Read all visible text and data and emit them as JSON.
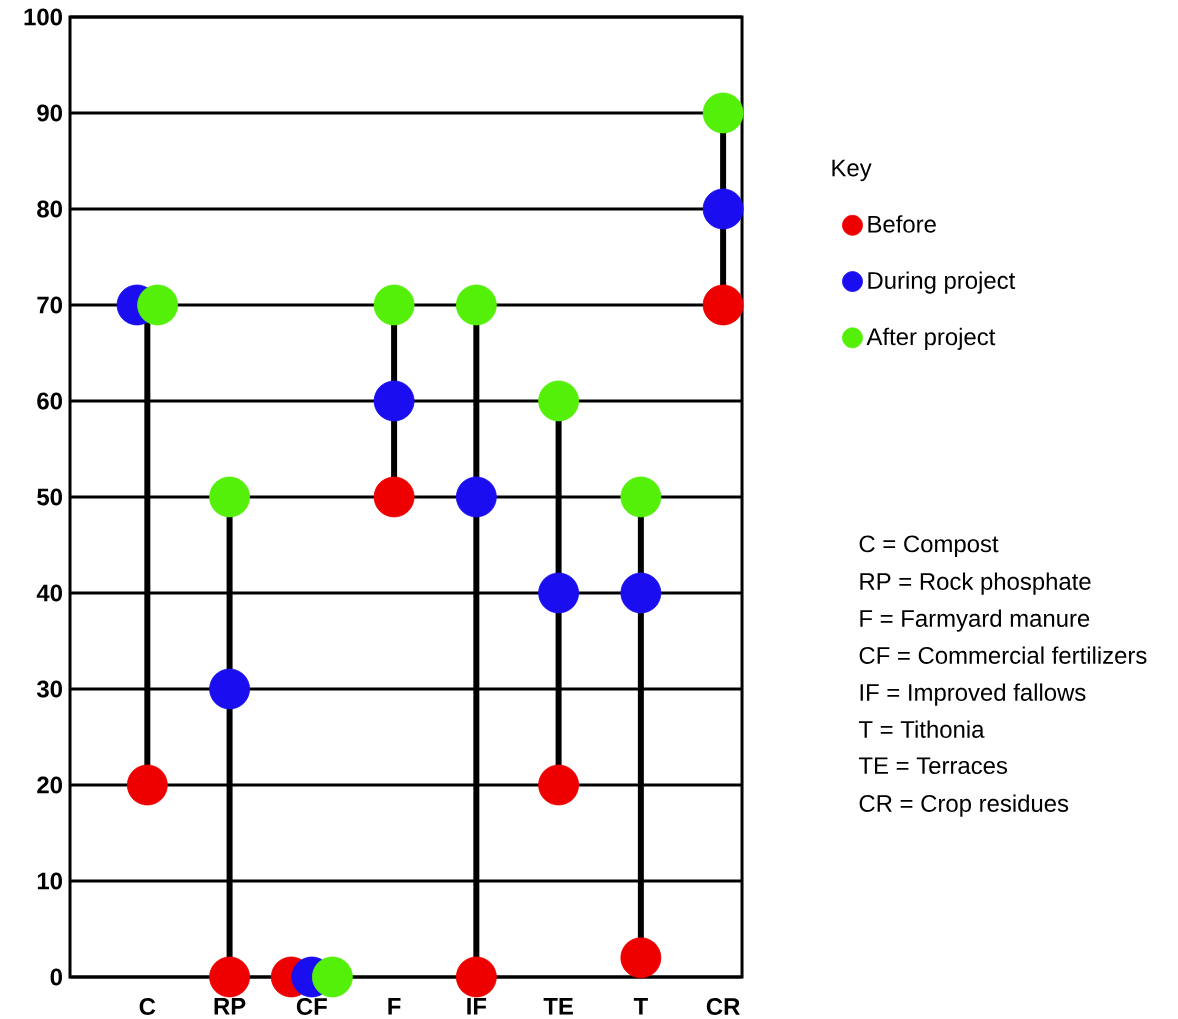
{
  "chart_data": {
    "type": "scatter",
    "categories": [
      "C",
      "RP",
      "CF",
      "F",
      "IF",
      "TE",
      "T",
      "CR"
    ],
    "series": [
      {
        "name": "Before",
        "color": "#ee0000",
        "values": [
          20,
          0,
          0,
          50,
          0,
          20,
          2,
          70
        ]
      },
      {
        "name": "During project",
        "color": "#1a0ef0",
        "values": [
          70,
          30,
          0,
          60,
          50,
          40,
          40,
          80
        ]
      },
      {
        "name": "After project",
        "color": "#55f00a",
        "values": [
          70,
          50,
          0,
          70,
          70,
          60,
          50,
          90
        ]
      }
    ],
    "ylim": [
      0,
      100
    ],
    "yticks": [
      0,
      10,
      20,
      30,
      40,
      50,
      60,
      70,
      80,
      90,
      100
    ],
    "grid": "y",
    "legend": "right",
    "legend_title": "Key",
    "marker": "circle",
    "annotations": [
      "C = Compost",
      "RP = Rock phosphate",
      "F = Farmyard manure",
      "CF = Commercial fertilizers",
      "IF = Improved fallows",
      "T = Tithonia",
      "TE = Terraces",
      "CR = Crop residues"
    ]
  }
}
